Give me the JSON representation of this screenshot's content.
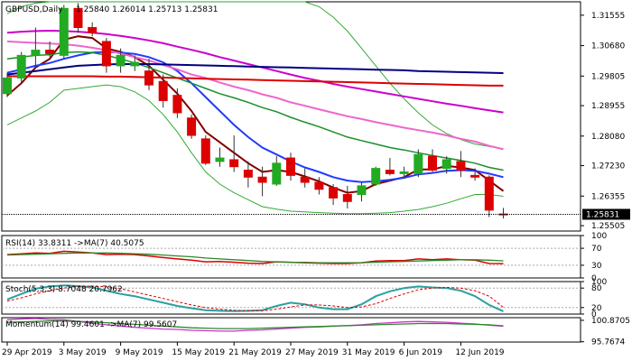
{
  "header": {
    "symbol": "GBPUSD,Daily",
    "quote": "1.25840 1.26014 1.25713 1.25831"
  },
  "last_price_label": "1.25831",
  "colors": {
    "bull": "#22aa22",
    "bear": "#dd0000",
    "ema_fast": "#800000",
    "ema_blue": "#1f3cff",
    "ema_green": "#1a8f2a",
    "ema_pink": "#ee66cc",
    "ema_magenta": "#cc00cc",
    "sma_navy": "#000080",
    "sma_red": "#dd0000",
    "bollinger": "#33aa33",
    "rsi_line": "#dd0000",
    "rsi_ma": "#2a8a2a",
    "stoch_main": "#2aa0a0",
    "stoch_signal": "#dd0000",
    "mom_line": "#cc33cc",
    "mom_ma": "#2a8a2a"
  },
  "chart_data": [
    {
      "type": "candlestick",
      "title": "GBPUSD,Daily",
      "ylim": [
        1.2535,
        1.3194
      ],
      "yticks": [
        "1.31555",
        "1.30680",
        "1.29805",
        "1.28955",
        "1.28080",
        "1.27230",
        "1.26355",
        "1.25505"
      ],
      "ytick_values": [
        1.31555,
        1.3068,
        1.29805,
        1.28955,
        1.2808,
        1.2723,
        1.26355,
        1.25505
      ],
      "xticks": [
        "29 Apr 2019",
        "3 May 2019",
        "9 May 2019",
        "15 May 2019",
        "21 May 2019",
        "27 May 2019",
        "31 May 2019",
        "6 Jun 2019",
        "12 Jun 2019"
      ],
      "xtick_index": [
        0,
        4,
        8,
        12,
        16,
        20,
        24,
        28,
        32
      ],
      "candles": [
        {
          "o": 1.293,
          "h": 1.299,
          "l": 1.292,
          "c": 1.2975
        },
        {
          "o": 1.2975,
          "h": 1.305,
          "l": 1.296,
          "c": 1.304
        },
        {
          "o": 1.304,
          "h": 1.312,
          "l": 1.3005,
          "c": 1.3055
        },
        {
          "o": 1.3055,
          "h": 1.308,
          "l": 1.3035,
          "c": 1.3045
        },
        {
          "o": 1.304,
          "h": 1.3185,
          "l": 1.303,
          "c": 1.3175
        },
        {
          "o": 1.3175,
          "h": 1.319,
          "l": 1.3105,
          "c": 1.312
        },
        {
          "o": 1.312,
          "h": 1.3135,
          "l": 1.3095,
          "c": 1.3105
        },
        {
          "o": 1.308,
          "h": 1.309,
          "l": 1.299,
          "c": 1.301
        },
        {
          "o": 1.301,
          "h": 1.306,
          "l": 1.299,
          "c": 1.304
        },
        {
          "o": 1.301,
          "h": 1.304,
          "l": 1.2995,
          "c": 1.302
        },
        {
          "o": 1.2995,
          "h": 1.303,
          "l": 1.294,
          "c": 1.2955
        },
        {
          "o": 1.2965,
          "h": 1.2985,
          "l": 1.289,
          "c": 1.291
        },
        {
          "o": 1.2925,
          "h": 1.2945,
          "l": 1.286,
          "c": 1.2875
        },
        {
          "o": 1.286,
          "h": 1.287,
          "l": 1.28,
          "c": 1.281
        },
        {
          "o": 1.28,
          "h": 1.281,
          "l": 1.2725,
          "c": 1.273
        },
        {
          "o": 1.2735,
          "h": 1.2775,
          "l": 1.272,
          "c": 1.2745
        },
        {
          "o": 1.274,
          "h": 1.281,
          "l": 1.2705,
          "c": 1.272
        },
        {
          "o": 1.271,
          "h": 1.2735,
          "l": 1.266,
          "c": 1.269
        },
        {
          "o": 1.269,
          "h": 1.272,
          "l": 1.2635,
          "c": 1.2675
        },
        {
          "o": 1.267,
          "h": 1.275,
          "l": 1.2665,
          "c": 1.273
        },
        {
          "o": 1.2745,
          "h": 1.276,
          "l": 1.268,
          "c": 1.2695
        },
        {
          "o": 1.269,
          "h": 1.2715,
          "l": 1.266,
          "c": 1.2675
        },
        {
          "o": 1.2675,
          "h": 1.269,
          "l": 1.264,
          "c": 1.2655
        },
        {
          "o": 1.266,
          "h": 1.267,
          "l": 1.261,
          "c": 1.263
        },
        {
          "o": 1.264,
          "h": 1.2665,
          "l": 1.26,
          "c": 1.262
        },
        {
          "o": 1.264,
          "h": 1.2675,
          "l": 1.262,
          "c": 1.2665
        },
        {
          "o": 1.267,
          "h": 1.272,
          "l": 1.2665,
          "c": 1.2715
        },
        {
          "o": 1.271,
          "h": 1.2745,
          "l": 1.2695,
          "c": 1.27
        },
        {
          "o": 1.27,
          "h": 1.272,
          "l": 1.269,
          "c": 1.2705
        },
        {
          "o": 1.27,
          "h": 1.277,
          "l": 1.269,
          "c": 1.2755
        },
        {
          "o": 1.275,
          "h": 1.277,
          "l": 1.2705,
          "c": 1.271
        },
        {
          "o": 1.2715,
          "h": 1.275,
          "l": 1.27,
          "c": 1.274
        },
        {
          "o": 1.2735,
          "h": 1.2765,
          "l": 1.269,
          "c": 1.271
        },
        {
          "o": 1.2695,
          "h": 1.2715,
          "l": 1.268,
          "c": 1.269
        },
        {
          "o": 1.269,
          "h": 1.2695,
          "l": 1.2575,
          "c": 1.2595
        },
        {
          "o": 1.2584,
          "h": 1.26014,
          "l": 1.25713,
          "c": 1.25831
        }
      ],
      "lines": [
        {
          "name": "ema_fast",
          "values": [
            1.2925,
            1.296,
            1.3005,
            1.303,
            1.3085,
            1.3095,
            1.309,
            1.306,
            1.305,
            1.3035,
            1.301,
            1.297,
            1.293,
            1.288,
            1.282,
            1.279,
            1.276,
            1.273,
            1.2705,
            1.271,
            1.2705,
            1.2692,
            1.2678,
            1.266,
            1.2645,
            1.265,
            1.267,
            1.268,
            1.269,
            1.2712,
            1.2712,
            1.2722,
            1.2718,
            1.271,
            1.268,
            1.265
          ]
        },
        {
          "name": "ema_blue",
          "values": [
            1.299,
            1.3,
            1.301,
            1.3018,
            1.303,
            1.304,
            1.3048,
            1.305,
            1.3048,
            1.3044,
            1.3035,
            1.302,
            1.2995,
            1.296,
            1.292,
            1.288,
            1.284,
            1.2805,
            1.2775,
            1.2755,
            1.2735,
            1.2718,
            1.2705,
            1.269,
            1.268,
            1.2676,
            1.2678,
            1.2682,
            1.2688,
            1.2698,
            1.2702,
            1.2708,
            1.271,
            1.2708,
            1.27,
            1.269
          ]
        },
        {
          "name": "ema_green",
          "values": [
            1.303,
            1.3035,
            1.304,
            1.3042,
            1.3048,
            1.305,
            1.3048,
            1.304,
            1.303,
            1.3018,
            1.3005,
            1.299,
            1.2975,
            1.296,
            1.2945,
            1.293,
            1.2918,
            1.2905,
            1.289,
            1.2878,
            1.2862,
            1.2848,
            1.2835,
            1.282,
            1.2805,
            1.2795,
            1.2785,
            1.2775,
            1.2768,
            1.276,
            1.2752,
            1.2745,
            1.2738,
            1.273,
            1.2718,
            1.271
          ]
        },
        {
          "name": "ema_pink",
          "values": [
            1.308,
            1.3078,
            1.3076,
            1.3074,
            1.3072,
            1.3068,
            1.3062,
            1.3055,
            1.3045,
            1.3035,
            1.3025,
            1.3012,
            1.3,
            1.2985,
            1.2975,
            1.2962,
            1.295,
            1.294,
            1.2928,
            1.2918,
            1.2905,
            1.2895,
            1.2885,
            1.2875,
            1.2865,
            1.2857,
            1.2848,
            1.284,
            1.2832,
            1.2825,
            1.2818,
            1.281,
            1.28,
            1.2792,
            1.278,
            1.277
          ]
        },
        {
          "name": "ema_magenta",
          "values": [
            1.3105,
            1.3108,
            1.311,
            1.3111,
            1.311,
            1.3108,
            1.3105,
            1.3101,
            1.3096,
            1.309,
            1.3083,
            1.3075,
            1.3065,
            1.3056,
            1.3046,
            1.3035,
            1.3025,
            1.3015,
            1.3005,
            1.2995,
            1.2985,
            1.2975,
            1.2967,
            1.2958,
            1.295,
            1.2943,
            1.2936,
            1.2929,
            1.2922,
            1.2915,
            1.2908,
            1.2901,
            1.2895,
            1.2888,
            1.2882,
            1.2876
          ]
        },
        {
          "name": "sma_navy",
          "values": [
            1.2985,
            1.299,
            1.2995,
            1.3,
            1.3005,
            1.301,
            1.3012,
            1.3014,
            1.3015,
            1.3015,
            1.3015,
            1.3014,
            1.3013,
            1.3012,
            1.3011,
            1.301,
            1.3009,
            1.3008,
            1.3007,
            1.3006,
            1.3005,
            1.3004,
            1.3003,
            1.3002,
            1.3001,
            1.3,
            1.2999,
            1.2998,
            1.2997,
            1.2995,
            1.2994,
            1.2993,
            1.2992,
            1.2991,
            1.299,
            1.2989
          ]
        },
        {
          "name": "sma_red",
          "values": [
            1.298,
            1.298,
            1.298,
            1.298,
            1.298,
            1.298,
            1.298,
            1.2979,
            1.2979,
            1.2978,
            1.2977,
            1.2976,
            1.2975,
            1.2974,
            1.2973,
            1.2972,
            1.2971,
            1.297,
            1.2969,
            1.2968,
            1.2967,
            1.2966,
            1.2965,
            1.2964,
            1.2963,
            1.2962,
            1.2961,
            1.296,
            1.2959,
            1.2958,
            1.2957,
            1.2956,
            1.2955,
            1.2954,
            1.2953,
            1.2953
          ]
        },
        {
          "name": "bb_upper",
          "values": [
            1.316,
            1.318,
            1.319,
            1.3194,
            1.3194,
            1.3194,
            1.3194,
            1.3194,
            1.3194,
            1.3194,
            1.3194,
            1.3194,
            1.3194,
            1.3194,
            1.3194,
            1.3194,
            1.3194,
            1.3194,
            1.3194,
            1.3194,
            1.3194,
            1.3194,
            1.318,
            1.315,
            1.311,
            1.306,
            1.301,
            1.296,
            1.2915,
            1.2875,
            1.284,
            1.2815,
            1.2798,
            1.2785,
            1.2778,
            1.2772
          ]
        },
        {
          "name": "bb_lower",
          "values": [
            1.284,
            1.286,
            1.288,
            1.2905,
            1.294,
            1.2945,
            1.295,
            1.2955,
            1.295,
            1.2935,
            1.291,
            1.287,
            1.282,
            1.276,
            1.2705,
            1.267,
            1.2645,
            1.2625,
            1.2605,
            1.2598,
            1.2592,
            1.259,
            1.2588,
            1.2586,
            1.2585,
            1.2585,
            1.2586,
            1.2588,
            1.2592,
            1.2597,
            1.2605,
            1.2615,
            1.2628,
            1.264,
            1.264,
            1.2635
          ]
        }
      ]
    },
    {
      "type": "line",
      "title": "RSI(14) 33.8311 ->MA(7) 40.5075",
      "ylim": [
        0,
        100
      ],
      "yticks": [
        "100",
        "70",
        "30",
        "0"
      ],
      "ytick_values": [
        100,
        70,
        30,
        0
      ],
      "series": [
        {
          "name": "rsi",
          "values": [
            55,
            57,
            59,
            58,
            63,
            61,
            59,
            55,
            56,
            55,
            52,
            48,
            45,
            42,
            38,
            39,
            37,
            35,
            34,
            38,
            37,
            36,
            35,
            34,
            34,
            36,
            40,
            41,
            41,
            45,
            43,
            45,
            43,
            42,
            34,
            33.8
          ]
        },
        {
          "name": "rsi_ma",
          "values": [
            54,
            55,
            56,
            57,
            58,
            59,
            59,
            59,
            58,
            57,
            56,
            54,
            52,
            50,
            47,
            45,
            43,
            41,
            39,
            38,
            37,
            37,
            36,
            36,
            36,
            36,
            37,
            38,
            39,
            40,
            41,
            42,
            43,
            43,
            42,
            40.5
          ]
        }
      ]
    },
    {
      "type": "line",
      "title": "Stoch(5,3,3) 8.7048 20.7962",
      "ylim": [
        0,
        100
      ],
      "yticks": [
        "100",
        "80",
        "20",
        "0"
      ],
      "ytick_values": [
        100,
        80,
        20,
        0
      ],
      "series": [
        {
          "name": "main",
          "values": [
            45,
            62,
            78,
            85,
            88,
            86,
            82,
            72,
            62,
            55,
            45,
            35,
            25,
            18,
            12,
            10,
            9,
            10,
            12,
            25,
            35,
            30,
            20,
            15,
            15,
            30,
            55,
            70,
            80,
            85,
            82,
            80,
            72,
            55,
            28,
            8.7
          ]
        },
        {
          "name": "signal",
          "values": [
            40,
            50,
            62,
            72,
            80,
            85,
            86,
            84,
            78,
            68,
            58,
            48,
            38,
            28,
            20,
            15,
            12,
            10,
            10,
            15,
            22,
            28,
            28,
            25,
            20,
            22,
            32,
            48,
            62,
            75,
            80,
            82,
            80,
            72,
            55,
            20.8
          ]
        }
      ]
    },
    {
      "type": "line",
      "title": "Momentum(14) 99.4601 ->MA(7) 99.5607",
      "ylim": [
        95.7,
        101.5
      ],
      "yticks": [
        "100.8705",
        "95.7674"
      ],
      "ytick_values": [
        100.8705,
        95.7674
      ],
      "series": [
        {
          "name": "momentum",
          "values": [
            101.0,
            101.2,
            101.3,
            101.1,
            101.0,
            100.6,
            100.2,
            99.8,
            99.5,
            99.2,
            99.0,
            98.8,
            98.7,
            98.5,
            98.4,
            98.3,
            98.3,
            98.5,
            98.6,
            98.8,
            99.0,
            99.2,
            99.3,
            99.5,
            99.6,
            99.8,
            100.1,
            100.3,
            100.5,
            100.6,
            100.5,
            100.4,
            100.2,
            100.0,
            99.7,
            99.46
          ]
        },
        {
          "name": "momentum_ma",
          "values": [
            100.4,
            100.5,
            100.6,
            100.7,
            100.7,
            100.6,
            100.5,
            100.3,
            100.1,
            99.9,
            99.7,
            99.5,
            99.3,
            99.1,
            99.0,
            98.9,
            98.9,
            98.9,
            99.0,
            99.1,
            99.2,
            99.3,
            99.4,
            99.5,
            99.6,
            99.7,
            99.8,
            99.9,
            100.0,
            100.1,
            100.1,
            100.1,
            100.0,
            99.9,
            99.8,
            99.56
          ]
        }
      ]
    }
  ]
}
